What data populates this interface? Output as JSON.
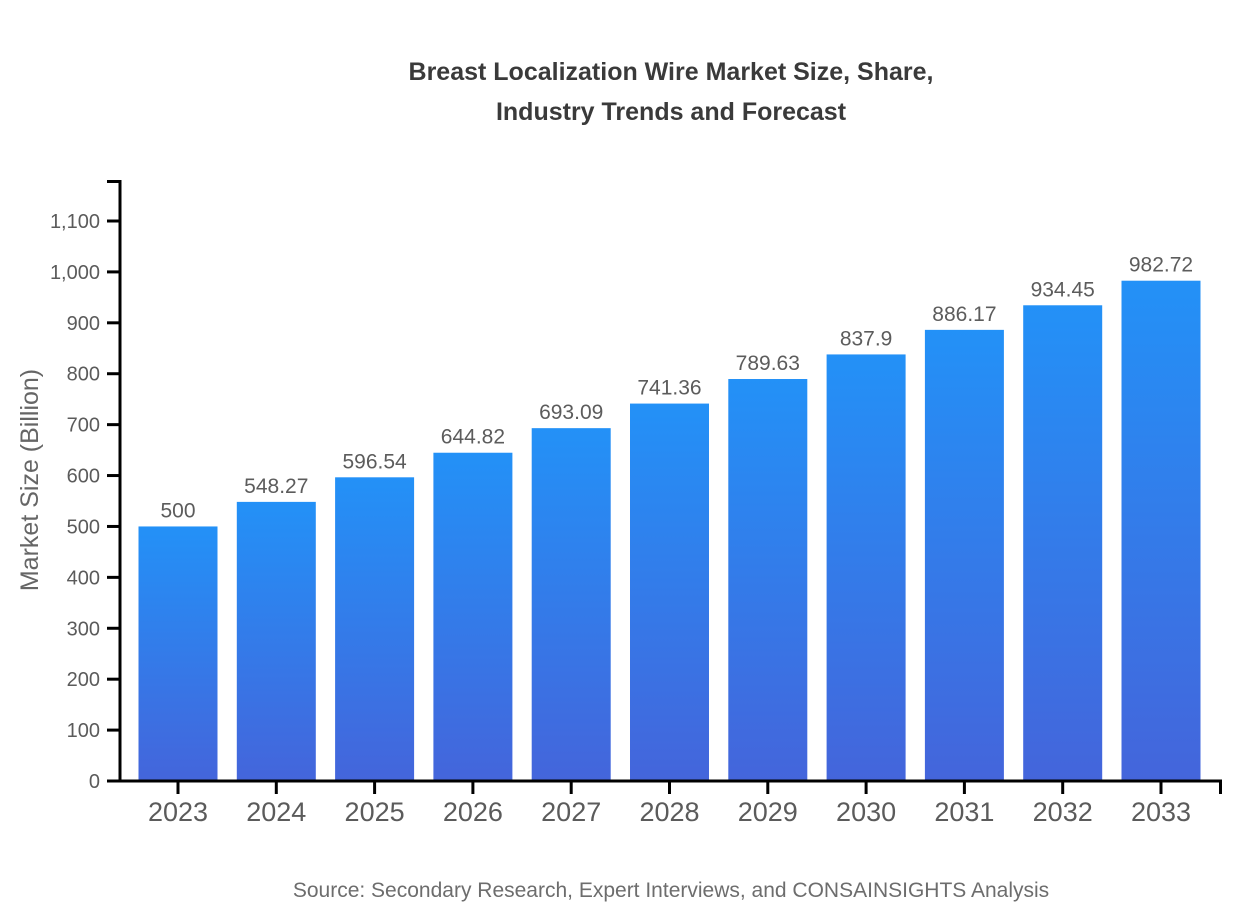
{
  "title": {
    "line1": "Breast Localization Wire Market Size, Share,",
    "line2": "Industry Trends and Forecast"
  },
  "source": "Source: Secondary Research, Expert Interviews, and CONSAINSIGHTS Analysis",
  "chart_data": {
    "type": "bar",
    "title": "Breast Localization Wire Market Size, Share, Industry Trends and Forecast",
    "categories": [
      "2023",
      "2024",
      "2025",
      "2026",
      "2027",
      "2028",
      "2029",
      "2030",
      "2031",
      "2032",
      "2033"
    ],
    "values": [
      500,
      548.27,
      596.54,
      644.82,
      693.09,
      741.36,
      789.63,
      837.9,
      886.17,
      934.45,
      982.72
    ],
    "value_labels": [
      "500",
      "548.27",
      "596.54",
      "644.82",
      "693.09",
      "741.36",
      "789.63",
      "837.9",
      "886.17",
      "934.45",
      "982.72"
    ],
    "xlabel": "",
    "ylabel": "Market Size (Billion)",
    "ylim": [
      0,
      1100
    ],
    "ytick_step": 100,
    "ytick_values": [
      0,
      100,
      200,
      300,
      400,
      500,
      600,
      700,
      800,
      900,
      1000,
      1100
    ],
    "ytick_labels": [
      "0",
      "100",
      "200",
      "300",
      "400",
      "500",
      "600",
      "700",
      "800",
      "900",
      "1,000",
      "1,100"
    ],
    "grid": false,
    "legend": "none",
    "bar_gradient": {
      "top": "#2391F7",
      "bottom": "#4465DB"
    },
    "colors": {
      "axis": "#000000",
      "title_text": "#3a3a3a",
      "tick_text": "#5b5b5b",
      "value_text": "#5c5c5c",
      "ylabel_text": "#666666",
      "source_text": "#6d6d6d",
      "background": "#ffffff"
    }
  }
}
